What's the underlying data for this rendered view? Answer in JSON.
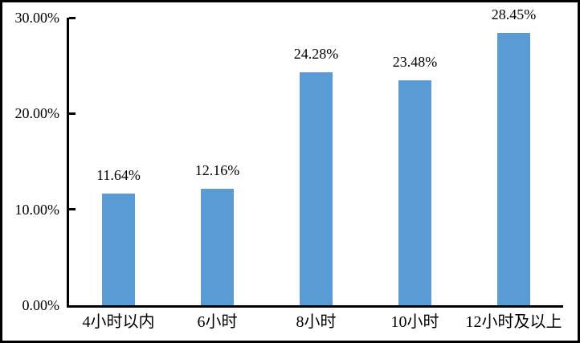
{
  "chart_data": {
    "type": "bar",
    "title": "",
    "xlabel": "",
    "ylabel": "",
    "categories": [
      "4小时以内",
      "6小时",
      "8小时",
      "10小时",
      "12小时及以上"
    ],
    "values": [
      11.64,
      12.16,
      24.28,
      23.48,
      28.45
    ],
    "value_labels": [
      "11.64%",
      "12.16%",
      "24.28%",
      "23.48%",
      "28.45%"
    ],
    "yticks": [
      {
        "value": 0,
        "label": "0.00%"
      },
      {
        "value": 10,
        "label": "10.00%"
      },
      {
        "value": 20,
        "label": "20.00%"
      },
      {
        "value": 30,
        "label": "30.00%"
      }
    ],
    "ylim": [
      0,
      30
    ],
    "grid": false,
    "legend": "none",
    "bar_color": "#5B9BD5",
    "axis_color": "#000000",
    "text_color": "#000000"
  }
}
